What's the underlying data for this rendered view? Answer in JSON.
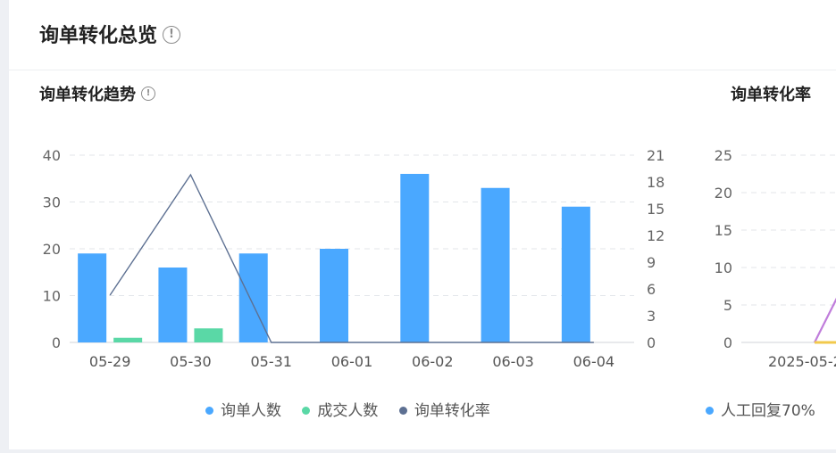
{
  "header": {
    "title": "询单转化总览",
    "info_icon": "!"
  },
  "trend": {
    "title": "询单转化趋势",
    "info_icon": "!",
    "legend": [
      {
        "label": "询单人数",
        "color": "#4aa8ff"
      },
      {
        "label": "成交人数",
        "color": "#5ad8a6"
      },
      {
        "label": "询单转化率",
        "color": "#5d7092"
      }
    ]
  },
  "rate": {
    "title": "询单转化率",
    "legend": [
      {
        "label": "人工回复70%",
        "color": "#4aa8ff"
      }
    ]
  },
  "chart_data": [
    {
      "type": "bar",
      "categories": [
        "05-29",
        "05-30",
        "05-31",
        "06-01",
        "06-02",
        "06-03",
        "06-04"
      ],
      "series": [
        {
          "name": "询单人数",
          "values": [
            19,
            16,
            19,
            20,
            36,
            33,
            29
          ],
          "color": "#4aa8ff",
          "axis": "left"
        },
        {
          "name": "成交人数",
          "values": [
            1,
            3,
            0,
            0,
            0,
            0,
            0
          ],
          "color": "#5ad8a6",
          "axis": "left"
        },
        {
          "name": "询单转化率",
          "type": "line",
          "values": [
            5.3,
            18.8,
            0,
            0,
            0,
            0,
            0
          ],
          "color": "#5d7092",
          "axis": "right"
        }
      ],
      "yticks_left": [
        "0",
        "10",
        "20",
        "30",
        "40"
      ],
      "yticks_right": [
        "0",
        "3",
        "6",
        "9",
        "12",
        "15",
        "18",
        "21"
      ],
      "ylim_left": [
        0,
        40
      ],
      "ylim_right": [
        0,
        21
      ],
      "grid": true,
      "legend_position": "bottom"
    },
    {
      "type": "line",
      "x_tick_label": "2025-05-2",
      "yticks": [
        "0",
        "5",
        "10",
        "15",
        "20",
        "25"
      ],
      "ylim": [
        0,
        25
      ],
      "grid": true,
      "legend_position": "bottom",
      "series": [
        {
          "values": [
            0,
            9
          ],
          "color": "#c07ddb"
        },
        {
          "values": [
            0,
            0
          ],
          "color": "#f2c94c"
        }
      ]
    }
  ]
}
